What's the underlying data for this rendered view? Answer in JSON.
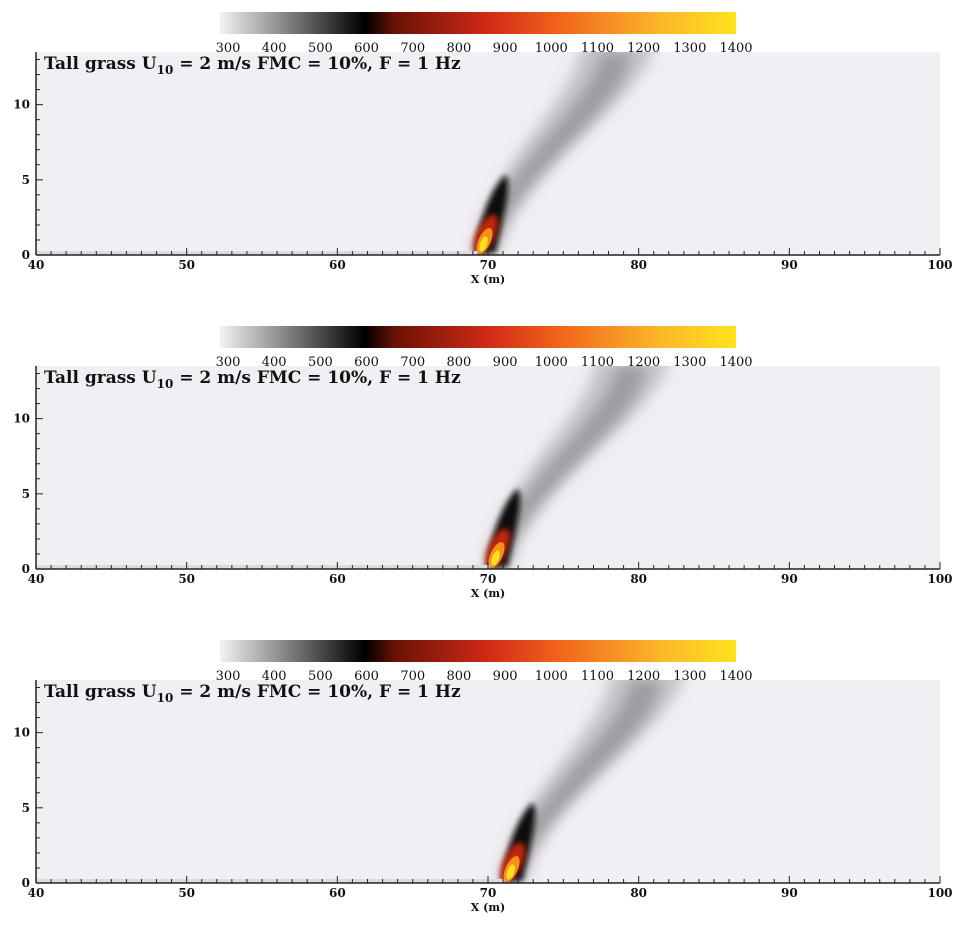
{
  "colorbar": {
    "ticks": [
      "300",
      "400",
      "500",
      "600",
      "700",
      "800",
      "900",
      "1000",
      "1100",
      "1200",
      "1300",
      "1400"
    ],
    "range": [
      300,
      1400
    ],
    "colors": [
      "#f4f1f5",
      "#000000",
      "#6b1206",
      "#d02a16",
      "#f2651c",
      "#fbba2a",
      "#ffe21a"
    ]
  },
  "colors": {
    "background": "#f2eff4",
    "axis": "#222222"
  },
  "chart_data": [
    {
      "type": "heatmap",
      "title_prefix": "Tall grass U",
      "title_sub": "10",
      "title_suffix": " = 2 m/s FMC = 10%, F = 1 Hz",
      "xlabel": "X (m)",
      "xlim": [
        40,
        100
      ],
      "ylim": [
        0,
        13.5
      ],
      "xticks": [
        40,
        50,
        60,
        70,
        80,
        90,
        100
      ],
      "yticks": [
        0,
        5,
        10
      ],
      "fire_front_x": 69.7,
      "plume_top_x": 78.5
    },
    {
      "type": "heatmap",
      "title_prefix": "Tall grass U",
      "title_sub": "10",
      "title_suffix": " = 2 m/s FMC = 10%, F = 1 Hz",
      "xlabel": "X (m)",
      "xlim": [
        40,
        100
      ],
      "ylim": [
        0,
        13.5
      ],
      "xticks": [
        40,
        50,
        60,
        70,
        80,
        90,
        100
      ],
      "yticks": [
        0,
        5,
        10
      ],
      "fire_front_x": 70.5,
      "plume_top_x": 79.5
    },
    {
      "type": "heatmap",
      "title_prefix": "Tall grass U",
      "title_sub": "10",
      "title_suffix": " = 2 m/s FMC = 10%, F = 1 Hz",
      "xlabel": "X (m)",
      "xlim": [
        40,
        100
      ],
      "ylim": [
        0,
        13.5
      ],
      "xticks": [
        40,
        50,
        60,
        70,
        80,
        90,
        100
      ],
      "yticks": [
        0,
        5,
        10
      ],
      "fire_front_x": 71.5,
      "plume_top_x": 80.5
    }
  ]
}
